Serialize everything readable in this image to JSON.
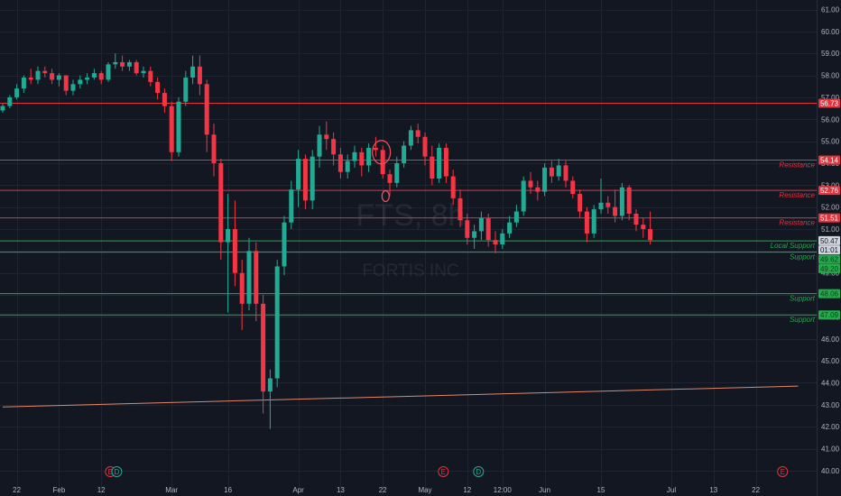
{
  "chart_data": {
    "type": "candlestick",
    "symbol_watermark": "FTS, 8h",
    "company_watermark": "FORTIS INC",
    "ylim": [
      39.9,
      61.4
    ],
    "price_ticks": [
      "61.00",
      "60.00",
      "59.00",
      "58.00",
      "57.00",
      "56.00",
      "55.00",
      "54.00",
      "53.00",
      "52.00",
      "51.00",
      "50.00",
      "49.00",
      "48.00",
      "47.00",
      "46.00",
      "45.00",
      "44.00",
      "43.00",
      "42.00",
      "41.00",
      "40.00"
    ],
    "time_ticks": [
      {
        "label": "22",
        "bar": 2
      },
      {
        "label": "Feb",
        "bar": 8
      },
      {
        "label": "12",
        "bar": 14
      },
      {
        "label": "Mar",
        "bar": 24
      },
      {
        "label": "16",
        "bar": 32
      },
      {
        "label": "Apr",
        "bar": 42
      },
      {
        "label": "13",
        "bar": 48
      },
      {
        "label": "22",
        "bar": 54
      },
      {
        "label": "May",
        "bar": 60
      },
      {
        "label": "12",
        "bar": 66
      },
      {
        "label": "12:00",
        "bar": 71
      },
      {
        "label": "Jun",
        "bar": 77
      },
      {
        "label": "15",
        "bar": 85
      },
      {
        "label": "Jul",
        "bar": 95
      },
      {
        "label": "13",
        "bar": 101
      },
      {
        "label": "22",
        "bar": 107
      }
    ],
    "levels": [
      {
        "price": 56.73,
        "label": "",
        "kind": "resistance"
      },
      {
        "price": 54.14,
        "label": "Resistance",
        "kind": "resistance"
      },
      {
        "price": 52.76,
        "label": "Resistance",
        "kind": "resistance"
      },
      {
        "price": 51.51,
        "label": "Resistance",
        "kind": "resistance"
      },
      {
        "price": 50.46,
        "label": "Local Support",
        "kind": "support"
      },
      {
        "price": 49.95,
        "label": "Support",
        "kind": "support"
      },
      {
        "price": 48.06,
        "label": "Support",
        "kind": "support"
      },
      {
        "price": 47.09,
        "label": "Support",
        "kind": "support"
      }
    ],
    "trendline": {
      "start": {
        "bar": 0,
        "price": 42.9
      },
      "end": {
        "bar": 113,
        "price": 43.85
      }
    },
    "price_badges": [
      {
        "text": "56.73",
        "price": 56.73,
        "kind": "resistance"
      },
      {
        "text": "54.14",
        "price": 54.14,
        "kind": "resistance"
      },
      {
        "text": "52.76",
        "price": 52.76,
        "kind": "resistance"
      },
      {
        "text": "51.51",
        "price": 51.51,
        "kind": "resistance"
      },
      {
        "text": "50.47",
        "price": 50.47,
        "kind": "last"
      },
      {
        "text": "01:01",
        "price": 50.05,
        "kind": "countdown"
      },
      {
        "text": "49.62",
        "price": 49.62,
        "kind": "support"
      },
      {
        "text": "49.20",
        "price": 49.2,
        "kind": "support"
      },
      {
        "text": "48.06",
        "price": 48.06,
        "kind": "support"
      },
      {
        "text": "47.09",
        "price": 47.09,
        "kind": "support"
      }
    ],
    "events": [
      {
        "letter": "E",
        "bar": 15.3,
        "kind": "earnings"
      },
      {
        "letter": "D",
        "bar": 16.2,
        "kind": "dividend"
      },
      {
        "letter": "E",
        "bar": 62.6,
        "kind": "earnings"
      },
      {
        "letter": "D",
        "bar": 67.6,
        "kind": "dividend"
      },
      {
        "letter": "E",
        "bar": 110.8,
        "kind": "earnings"
      }
    ],
    "annotations": [
      {
        "kind": "hand-drawn-circle",
        "bar": 53.8,
        "price": 54.5
      },
      {
        "kind": "hand-drawn-circle",
        "bar": 54.4,
        "price": 52.5
      }
    ],
    "candles": [
      [
        56.4,
        56.7,
        56.3,
        56.6
      ],
      [
        56.6,
        57.1,
        56.5,
        57.0
      ],
      [
        57.0,
        57.6,
        56.9,
        57.4
      ],
      [
        57.4,
        58.0,
        57.2,
        57.9
      ],
      [
        57.9,
        58.3,
        57.6,
        57.8
      ],
      [
        57.8,
        58.4,
        57.6,
        58.2
      ],
      [
        58.2,
        58.4,
        57.9,
        58.1
      ],
      [
        58.1,
        58.3,
        57.6,
        57.8
      ],
      [
        57.8,
        58.1,
        57.5,
        58.0
      ],
      [
        58.0,
        58.0,
        57.1,
        57.3
      ],
      [
        57.3,
        57.8,
        57.1,
        57.6
      ],
      [
        57.6,
        58.0,
        57.4,
        57.8
      ],
      [
        57.8,
        58.1,
        57.6,
        57.9
      ],
      [
        57.9,
        58.3,
        57.8,
        58.1
      ],
      [
        58.1,
        58.2,
        57.6,
        57.8
      ],
      [
        57.8,
        58.6,
        57.7,
        58.5
      ],
      [
        58.5,
        59.0,
        58.3,
        58.6
      ],
      [
        58.6,
        58.9,
        58.2,
        58.4
      ],
      [
        58.4,
        58.7,
        58.2,
        58.6
      ],
      [
        58.6,
        58.7,
        58.0,
        58.1
      ],
      [
        58.1,
        58.4,
        57.9,
        58.2
      ],
      [
        58.2,
        58.4,
        57.5,
        57.7
      ],
      [
        57.7,
        57.9,
        56.9,
        57.2
      ],
      [
        57.2,
        57.4,
        56.3,
        56.6
      ],
      [
        56.6,
        56.8,
        54.1,
        54.5
      ],
      [
        54.5,
        57.0,
        54.3,
        56.8
      ],
      [
        56.8,
        58.2,
        56.6,
        57.9
      ],
      [
        57.9,
        58.9,
        57.6,
        58.4
      ],
      [
        58.4,
        58.9,
        57.1,
        57.6
      ],
      [
        57.6,
        57.8,
        54.5,
        55.3
      ],
      [
        55.3,
        55.8,
        53.4,
        54.0
      ],
      [
        54.0,
        54.2,
        49.6,
        50.4
      ],
      [
        50.4,
        52.6,
        47.2,
        51.0
      ],
      [
        51.0,
        52.3,
        48.4,
        49.0
      ],
      [
        49.0,
        49.6,
        46.4,
        47.6
      ],
      [
        47.6,
        50.6,
        47.3,
        50.0
      ],
      [
        50.0,
        50.4,
        46.8,
        47.6
      ],
      [
        47.6,
        48.0,
        42.6,
        43.6
      ],
      [
        43.6,
        44.6,
        41.9,
        44.2
      ],
      [
        44.2,
        49.6,
        43.8,
        49.3
      ],
      [
        49.3,
        51.6,
        48.9,
        51.3
      ],
      [
        51.3,
        53.2,
        51.0,
        52.8
      ],
      [
        52.8,
        54.6,
        52.0,
        54.2
      ],
      [
        54.2,
        54.4,
        51.9,
        52.3
      ],
      [
        52.3,
        54.6,
        51.9,
        54.3
      ],
      [
        54.3,
        55.7,
        53.8,
        55.3
      ],
      [
        55.3,
        55.9,
        54.6,
        55.1
      ],
      [
        55.1,
        55.4,
        53.9,
        54.4
      ],
      [
        54.4,
        54.7,
        53.3,
        53.6
      ],
      [
        53.6,
        54.4,
        53.3,
        54.1
      ],
      [
        54.1,
        54.8,
        53.8,
        54.5
      ],
      [
        54.5,
        54.7,
        53.4,
        53.9
      ],
      [
        53.9,
        54.9,
        53.6,
        54.7
      ],
      [
        54.7,
        55.2,
        54.3,
        54.6
      ],
      [
        54.6,
        54.8,
        53.3,
        53.5
      ],
      [
        53.5,
        53.7,
        52.5,
        53.1
      ],
      [
        53.1,
        54.3,
        52.9,
        54.0
      ],
      [
        54.0,
        55.0,
        53.8,
        54.8
      ],
      [
        54.8,
        55.7,
        54.6,
        55.5
      ],
      [
        55.5,
        55.8,
        54.9,
        55.2
      ],
      [
        55.2,
        55.4,
        53.9,
        54.3
      ],
      [
        54.3,
        54.8,
        53.0,
        53.3
      ],
      [
        53.3,
        54.9,
        53.1,
        54.7
      ],
      [
        54.7,
        54.9,
        53.1,
        53.4
      ],
      [
        53.4,
        53.7,
        52.1,
        52.4
      ],
      [
        52.4,
        52.8,
        51.1,
        51.4
      ],
      [
        51.4,
        51.7,
        50.3,
        50.6
      ],
      [
        50.6,
        51.2,
        50.1,
        50.9
      ],
      [
        50.9,
        51.8,
        50.5,
        51.5
      ],
      [
        51.5,
        51.7,
        50.2,
        50.5
      ],
      [
        50.5,
        50.9,
        49.9,
        50.3
      ],
      [
        50.3,
        51.0,
        50.1,
        50.8
      ],
      [
        50.8,
        51.6,
        50.6,
        51.3
      ],
      [
        51.3,
        52.1,
        51.1,
        51.8
      ],
      [
        51.8,
        53.4,
        51.6,
        53.2
      ],
      [
        53.2,
        53.6,
        52.6,
        52.9
      ],
      [
        52.9,
        53.2,
        52.3,
        52.7
      ],
      [
        52.7,
        54.0,
        52.5,
        53.8
      ],
      [
        53.8,
        54.1,
        53.1,
        53.4
      ],
      [
        53.4,
        54.2,
        53.2,
        53.9
      ],
      [
        53.9,
        54.1,
        52.9,
        53.2
      ],
      [
        53.2,
        53.4,
        52.4,
        52.6
      ],
      [
        52.6,
        52.8,
        51.5,
        51.8
      ],
      [
        51.8,
        52.0,
        50.4,
        50.8
      ],
      [
        50.8,
        52.1,
        50.6,
        51.9
      ],
      [
        51.9,
        53.3,
        51.7,
        52.2
      ],
      [
        52.2,
        52.5,
        51.7,
        52.0
      ],
      [
        52.0,
        52.8,
        51.3,
        51.6
      ],
      [
        51.6,
        53.1,
        51.4,
        52.9
      ],
      [
        52.9,
        53.0,
        51.4,
        51.7
      ],
      [
        51.7,
        51.9,
        50.9,
        51.2
      ],
      [
        51.2,
        51.5,
        50.6,
        51.0
      ],
      [
        51.0,
        51.8,
        50.3,
        50.5
      ]
    ]
  }
}
